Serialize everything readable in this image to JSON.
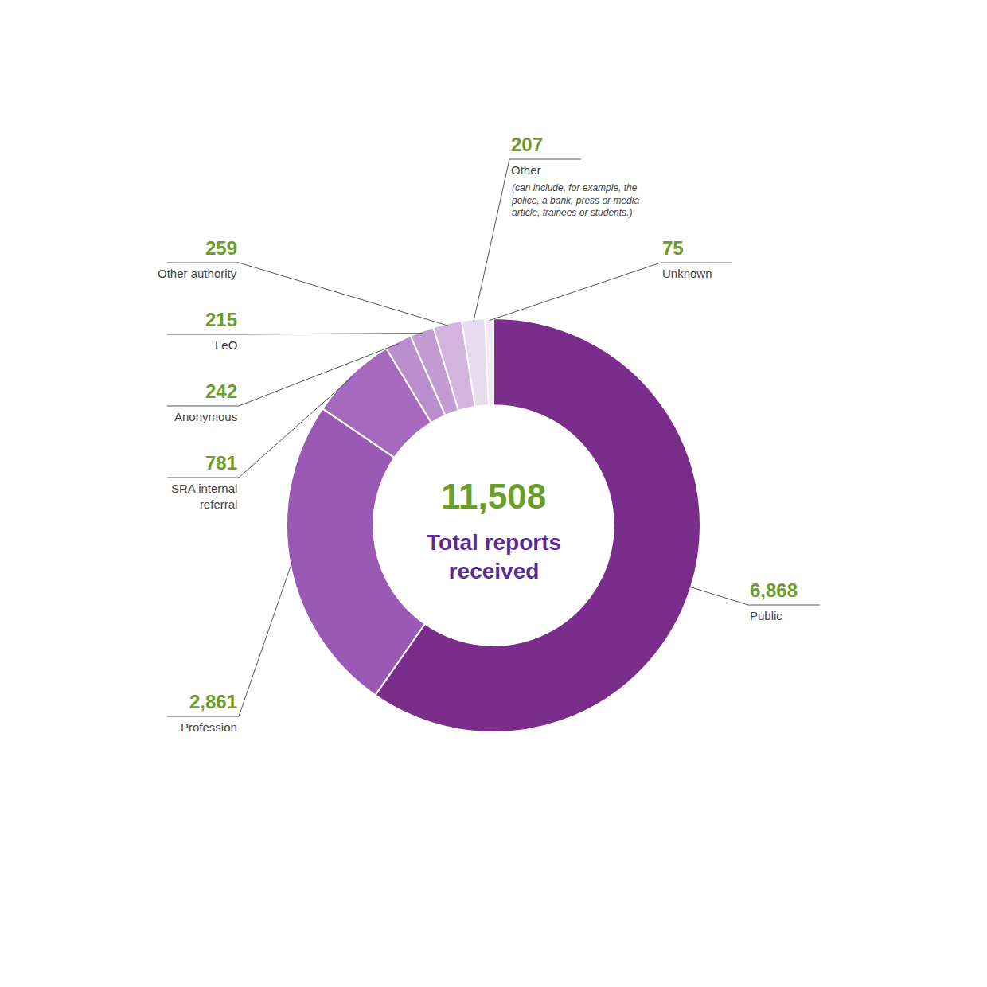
{
  "chart_data": {
    "type": "donut",
    "categories": [
      "Public",
      "Profession",
      "SRA internal\nreferral",
      "Anonymous",
      "LeO",
      "Other authority",
      "Other",
      "Unknown"
    ],
    "values": [
      6868,
      2861,
      781,
      242,
      215,
      259,
      207,
      75
    ],
    "value_labels": [
      "6,868",
      "2,861",
      "781",
      "242",
      "215",
      "259",
      "207",
      "75"
    ],
    "colors": [
      "#7B2D8B",
      "#9B59B6",
      "#A569BD",
      "#BB8FCE",
      "#C39BD3",
      "#D2B4DE",
      "#E8DAEF",
      "#F3EAF7"
    ],
    "data_labels": true,
    "annotations": [
      {
        "text": "11,508"
      },
      {
        "text": "Total reports\nreceived"
      },
      {
        "text": "(can include, for example, the\npolice, a bank, press or media\narticle, trainees or students.)",
        "category": "Other"
      }
    ]
  }
}
